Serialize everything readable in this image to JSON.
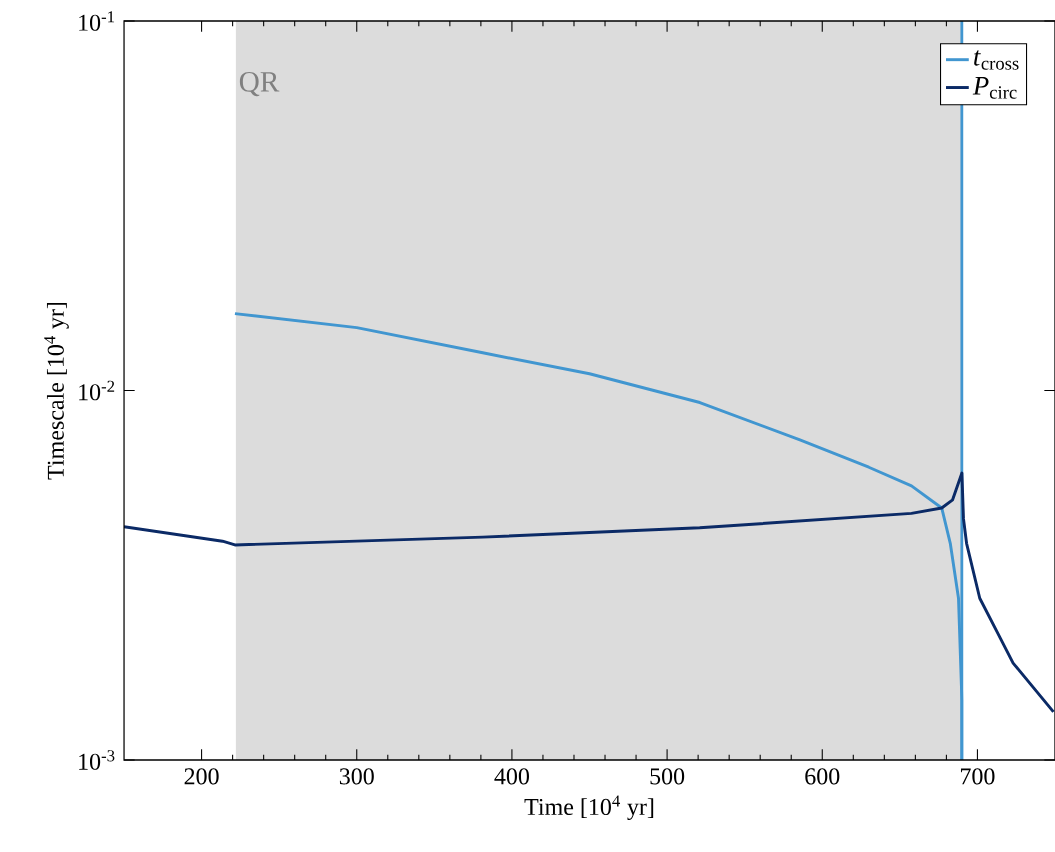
{
  "chart_data": {
    "type": "line",
    "xlabel": "Time [10$^{4}$ yr]",
    "ylabel": "Timescale [10$^{4}$ yr]",
    "xlim": [
      150,
      750
    ],
    "ylim": [
      0.001,
      0.1
    ],
    "log": "y",
    "xticks": [
      200,
      300,
      400,
      500,
      600,
      700
    ],
    "yticks": [
      {
        "value": 0.001,
        "label": "10$^{-3}$"
      },
      {
        "value": 0.01,
        "label": "10$^{-2}$"
      },
      {
        "value": 0.1,
        "label": "10$^{-1}$"
      }
    ],
    "grid": false,
    "legend": "top right",
    "marker": "none",
    "line_style": "solid",
    "bands": [
      {
        "axis": "x",
        "from": 222,
        "to": 690,
        "label": "QR",
        "color": "#dcdcdc"
      }
    ],
    "series": [
      {
        "name": "*t*$_{cross}$",
        "color": "#4196d0",
        "x": [
          221.5,
          300,
          381.2,
          450,
          521.1,
          585.6,
          630,
          657.5,
          677,
          682.5,
          687.8,
          690,
          690
        ],
        "values": [
          0.01615,
          0.0148,
          0.01265,
          0.0111,
          0.00928,
          0.00735,
          0.0062,
          0.00552,
          0.00481,
          0.00386,
          0.00274,
          0.00145,
          0.001
        ]
      },
      {
        "color": "#4196d0",
        "x": [
          690,
          690
        ],
        "values": [
          0.001,
          0.1
        ]
      },
      {
        "name": "*P*$_{circ}$",
        "color": "#0b2a66",
        "x": [
          150,
          213.5,
          221.5,
          381.2,
          521,
          657.5,
          677,
          684,
          690,
          691,
          693,
          701.5,
          712,
          723,
          749
        ],
        "values": [
          0.00428,
          0.00391,
          0.00382,
          0.00401,
          0.00425,
          0.00465,
          0.00481,
          0.00506,
          0.00598,
          0.0045,
          0.00386,
          0.00274,
          0.00225,
          0.00183,
          0.00135
        ]
      }
    ]
  }
}
